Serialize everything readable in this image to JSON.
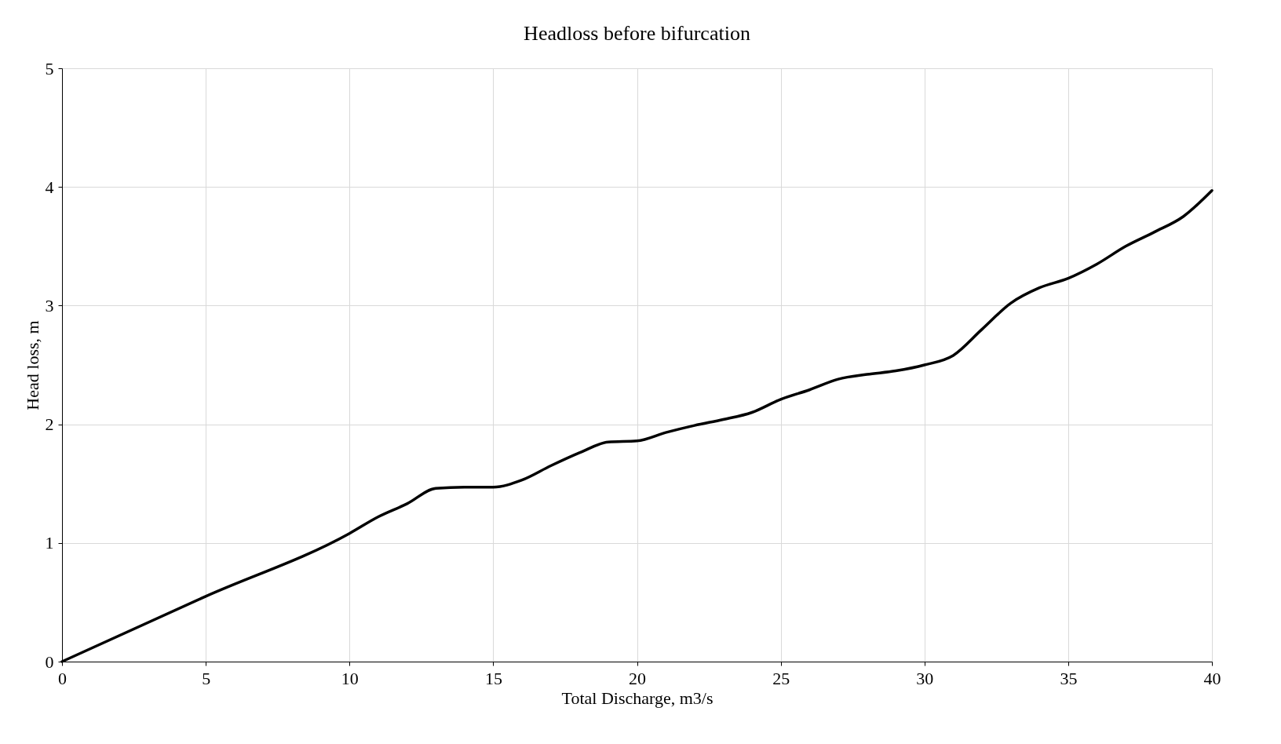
{
  "chart_data": {
    "type": "line",
    "title": "Headloss before bifurcation",
    "xlabel": "Total Discharge, m3/s",
    "ylabel": "Head loss, m",
    "x": [
      0,
      5,
      10,
      11,
      12,
      13,
      14,
      15,
      16,
      17,
      18,
      19,
      20,
      21,
      22,
      23,
      24,
      25,
      26,
      27,
      28,
      29,
      30,
      31,
      32,
      33,
      34,
      35,
      36,
      37,
      38,
      39,
      40
    ],
    "series": [
      {
        "color": "#000000",
        "values": [
          0,
          0.55,
          1.08,
          1.22,
          1.33,
          1.46,
          1.47,
          1.47,
          1.53,
          1.65,
          1.76,
          1.85,
          1.86,
          1.93,
          1.99,
          2.04,
          2.1,
          2.21,
          2.29,
          2.38,
          2.42,
          2.45,
          2.5,
          2.58,
          2.8,
          3.02,
          3.15,
          3.23,
          3.35,
          3.5,
          3.62,
          3.75,
          3.97
        ]
      }
    ],
    "xlim": [
      0,
      40
    ],
    "xticks": [
      0,
      5,
      10,
      15,
      20,
      25,
      30,
      35,
      40
    ],
    "ylim": [
      0,
      5
    ],
    "yticks": [
      0,
      1,
      2,
      3,
      4,
      5
    ],
    "grid": true,
    "marker": "none",
    "line_style": "solid"
  }
}
